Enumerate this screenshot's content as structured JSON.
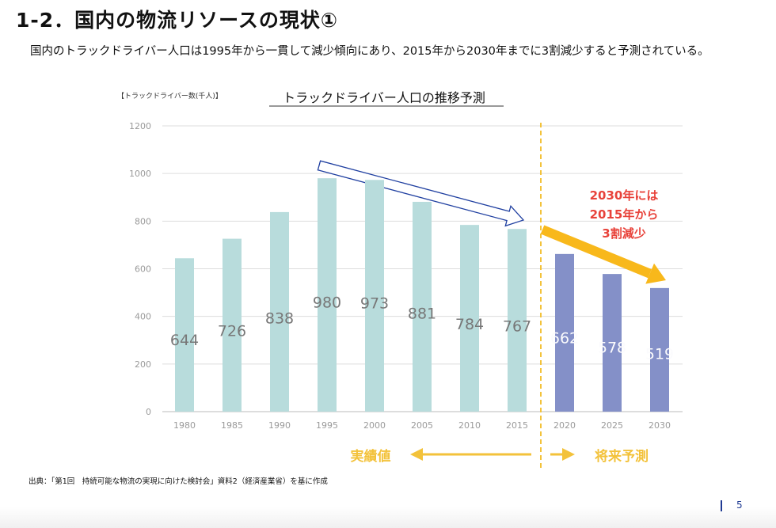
{
  "slide": {
    "title": "1-2．国内の物流リソースの現状①",
    "subtitle": "国内のトラックドライバー人口は1995年から一貫して減少傾向にあり、2015年から2030年までに3割減少すると予測されている。",
    "page_number": "5"
  },
  "colors": {
    "actual_bar": "#b8dcdc",
    "forecast_bar": "#8490c8",
    "divider": "#f3c23a",
    "orange_arrow": "#f8b81b",
    "annotation_text": "#e8423a",
    "outline_arrow": "#1f3fa0",
    "grid": "#dddddd",
    "axis_text": "#9a9a9a"
  },
  "chart_data": {
    "type": "bar",
    "title": "トラックドライバー人口の推移予測",
    "ylabel": "【トラックドライバー数(千人)】",
    "xlabel": "",
    "ylim": [
      0,
      1200
    ],
    "yticks": [
      0,
      200,
      400,
      600,
      800,
      1000,
      1200
    ],
    "grid": true,
    "categories": [
      "1980",
      "1985",
      "1990",
      "1995",
      "2000",
      "2005",
      "2010",
      "2015",
      "2020",
      "2025",
      "2030"
    ],
    "values": [
      644,
      726,
      838,
      980,
      973,
      881,
      784,
      767,
      662,
      578,
      519
    ],
    "value_labels": [
      "644",
      "726",
      "838",
      "980",
      "973",
      "881",
      "784",
      "767",
      "662",
      "578",
      "519"
    ],
    "series_type": [
      "actual",
      "actual",
      "actual",
      "actual",
      "actual",
      "actual",
      "actual",
      "actual",
      "forecast",
      "forecast",
      "forecast"
    ],
    "annotation": [
      "2030年には",
      "2015年から",
      "3割減少"
    ],
    "actual_label": "実績値",
    "forecast_label": "将来予測"
  },
  "source_note": "出典：「第1回　持続可能な物流の実現に向けた検討会」資料2（経済産業省）を基に作成"
}
